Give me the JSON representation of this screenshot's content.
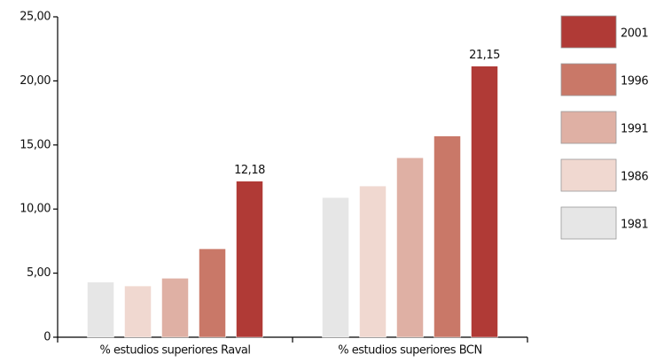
{
  "chart_data": {
    "type": "bar",
    "categories": [
      "% estudios superiores Raval",
      "% estudios superiores BCN"
    ],
    "series": [
      {
        "name": "1981",
        "color": "#e6e6e6",
        "values": [
          4.3,
          10.9
        ]
      },
      {
        "name": "1986",
        "color": "#f0d8d0",
        "values": [
          4.0,
          11.8
        ]
      },
      {
        "name": "1991",
        "color": "#dfb0a4",
        "values": [
          4.6,
          14.0
        ]
      },
      {
        "name": "1996",
        "color": "#c97868",
        "values": [
          6.9,
          15.7
        ]
      },
      {
        "name": "2001",
        "color": "#b03a36",
        "values": [
          12.18,
          21.15
        ],
        "value_labels": [
          "12,18",
          "21,15"
        ]
      }
    ],
    "ylim": [
      0,
      25
    ],
    "yticks": [
      0,
      {
        "value": 5,
        "label": "5,00"
      },
      {
        "value": 10,
        "label": "10,00"
      },
      {
        "value": 15,
        "label": "15,00"
      },
      {
        "value": 20,
        "label": "20,00"
      },
      {
        "value": 25,
        "label": "25,00"
      }
    ],
    "legend": "right"
  }
}
